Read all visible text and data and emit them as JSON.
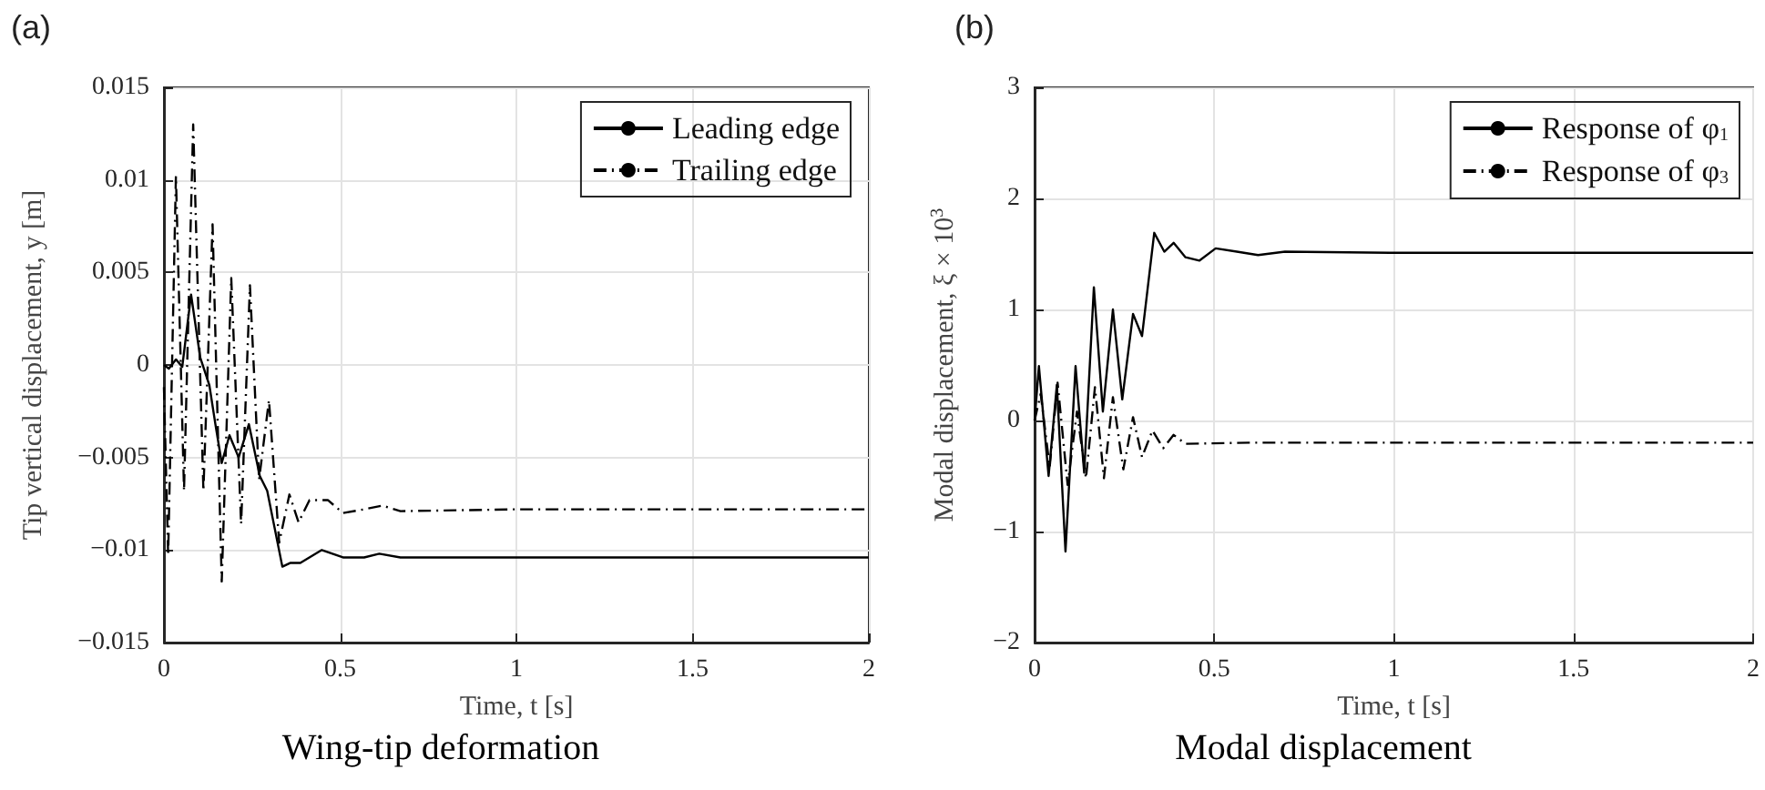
{
  "chart_data": [
    {
      "type": "line",
      "title": "Wing-tip deformation",
      "annotations": [
        "(a)"
      ],
      "xlabel": "Time, t [s]",
      "ylabel": "Tip vertical displacement, y [m]",
      "xlim": [
        0,
        2
      ],
      "xticks": [
        0,
        0.5,
        1,
        1.5,
        2
      ],
      "ylim": [
        -0.015,
        0.015
      ],
      "yticks": [
        -0.015,
        -0.01,
        -0.005,
        0,
        0.005,
        0.01,
        0.015
      ],
      "grid": true,
      "legend": "top right",
      "marker": "none",
      "series": [
        {
          "name": "Leading edge",
          "color": "#000000",
          "line_style": "solid",
          "x": [
            0,
            0.014,
            0.034,
            0.052,
            0.077,
            0.103,
            0.129,
            0.146,
            0.164,
            0.186,
            0.212,
            0.241,
            0.272,
            0.293,
            0.336,
            0.358,
            0.387,
            0.448,
            0.508,
            0.568,
            0.611,
            0.671,
            1,
            1.5,
            2
          ],
          "values": [
            0,
            -0.0002,
            0.0003,
            -0.0001,
            0.0038,
            0.0004,
            -0.0011,
            -0.0032,
            -0.0053,
            -0.0038,
            -0.005,
            -0.0032,
            -0.006,
            -0.0068,
            -0.0109,
            -0.0107,
            -0.0107,
            -0.01,
            -0.0104,
            -0.0104,
            -0.0102,
            -0.0104,
            -0.0104,
            -0.0104,
            -0.0104
          ]
        },
        {
          "name": "Trailing edge",
          "color": "#000000",
          "line_style": "dashdot",
          "x": [
            0,
            0.012,
            0.034,
            0.057,
            0.083,
            0.112,
            0.138,
            0.164,
            0.191,
            0.219,
            0.244,
            0.27,
            0.298,
            0.327,
            0.356,
            0.382,
            0.413,
            0.465,
            0.508,
            0.568,
            0.62,
            0.671,
            1,
            1.5,
            2
          ],
          "values": [
            -0.0012,
            -0.0103,
            0.0102,
            -0.0068,
            0.013,
            -0.0068,
            0.0076,
            -0.0117,
            0.0047,
            -0.0086,
            0.0043,
            -0.0062,
            -0.0019,
            -0.0096,
            -0.007,
            -0.0085,
            -0.0073,
            -0.0073,
            -0.008,
            -0.0078,
            -0.0076,
            -0.0079,
            -0.0078,
            -0.0078,
            -0.0078
          ]
        }
      ]
    },
    {
      "type": "line",
      "title": "Modal displacement",
      "annotations": [
        "(b)"
      ],
      "xlabel": "Time, t [s]",
      "ylabel": "Modal displacement, ξ × 10$^{3}$",
      "xlim": [
        0,
        2
      ],
      "xticks": [
        0,
        0.5,
        1,
        1.5,
        2
      ],
      "ylim": [
        -2,
        3
      ],
      "yticks": [
        -2,
        -1,
        0,
        1,
        2,
        3
      ],
      "grid": true,
      "legend": "top right",
      "marker": "none",
      "series": [
        {
          "name": "Response of φ$_{1}$",
          "color": "#000000",
          "line_style": "solid",
          "x": [
            0,
            0.012,
            0.039,
            0.062,
            0.086,
            0.114,
            0.138,
            0.165,
            0.19,
            0.218,
            0.244,
            0.274,
            0.299,
            0.333,
            0.361,
            0.387,
            0.42,
            0.459,
            0.504,
            0.563,
            0.622,
            0.697,
            1,
            1.5,
            2
          ],
          "values": [
            0,
            0.49,
            -0.5,
            0.32,
            -1.18,
            0.49,
            -0.47,
            1.2,
            0.08,
            1.0,
            0.19,
            0.96,
            0.76,
            1.69,
            1.52,
            1.6,
            1.47,
            1.44,
            1.55,
            1.52,
            1.49,
            1.52,
            1.51,
            1.51,
            1.51
          ]
        },
        {
          "name": "Response of φ$_{3}$",
          "color": "#000000",
          "line_style": "dashdot",
          "x": [
            0,
            0.017,
            0.042,
            0.064,
            0.092,
            0.118,
            0.143,
            0.168,
            0.193,
            0.218,
            0.247,
            0.274,
            0.299,
            0.328,
            0.358,
            0.387,
            0.42,
            0.6,
            1,
            1.5,
            2
          ],
          "values": [
            0,
            0.24,
            -0.42,
            0.34,
            -0.58,
            0.08,
            -0.52,
            0.3,
            -0.52,
            0.21,
            -0.44,
            0.03,
            -0.33,
            -0.09,
            -0.25,
            -0.13,
            -0.21,
            -0.2,
            -0.2,
            -0.2,
            -0.2
          ]
        }
      ]
    }
  ]
}
